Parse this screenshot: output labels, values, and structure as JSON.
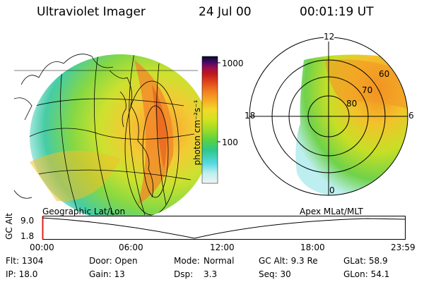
{
  "header": {
    "instrument": "Ultraviolet Imager",
    "date": "24 Jul 00",
    "time": "00:01:19 UT"
  },
  "colorbar": {
    "ticks": [
      "1000",
      "100"
    ],
    "unit_label": "photon cm⁻²s⁻¹",
    "colors": [
      "#f2f2f2",
      "#bdeff0",
      "#55d8e0",
      "#2fc88c",
      "#58d243",
      "#9bdc2a",
      "#d2e21f",
      "#f2d82a",
      "#f7ad25",
      "#f38220",
      "#e34b1c",
      "#c0181d",
      "#9a0d4a",
      "#4a0a6a",
      "#0a0a28"
    ]
  },
  "panels": {
    "left_label": "Geographic Lat/Lon",
    "right_label": "Apex MLat/MLT"
  },
  "polar": {
    "mlt_labels": [
      "12",
      "18",
      "6",
      "0"
    ],
    "lat_labels": [
      "60",
      "70",
      "80"
    ]
  },
  "altitude_plot": {
    "ylabel": "GC Alt",
    "yticks": [
      "9.0",
      "1.8"
    ],
    "xticks": [
      "00:00",
      "06:00",
      "12:00",
      "18:00",
      "23:59"
    ]
  },
  "footer": {
    "flt": "Flt: 1304",
    "ip": "IP: 18.0",
    "door": "Door: Open",
    "gain": "Gain: 13",
    "mode_label": "Mode:",
    "mode_value": "Normal",
    "dsp_label": "Dsp:",
    "dsp_value": "3.3",
    "gc_alt": "GC Alt: 9.3 Re",
    "seq": "Seq: 30",
    "glat": "GLat: 58.9",
    "glon": "GLon: 54.1"
  }
}
